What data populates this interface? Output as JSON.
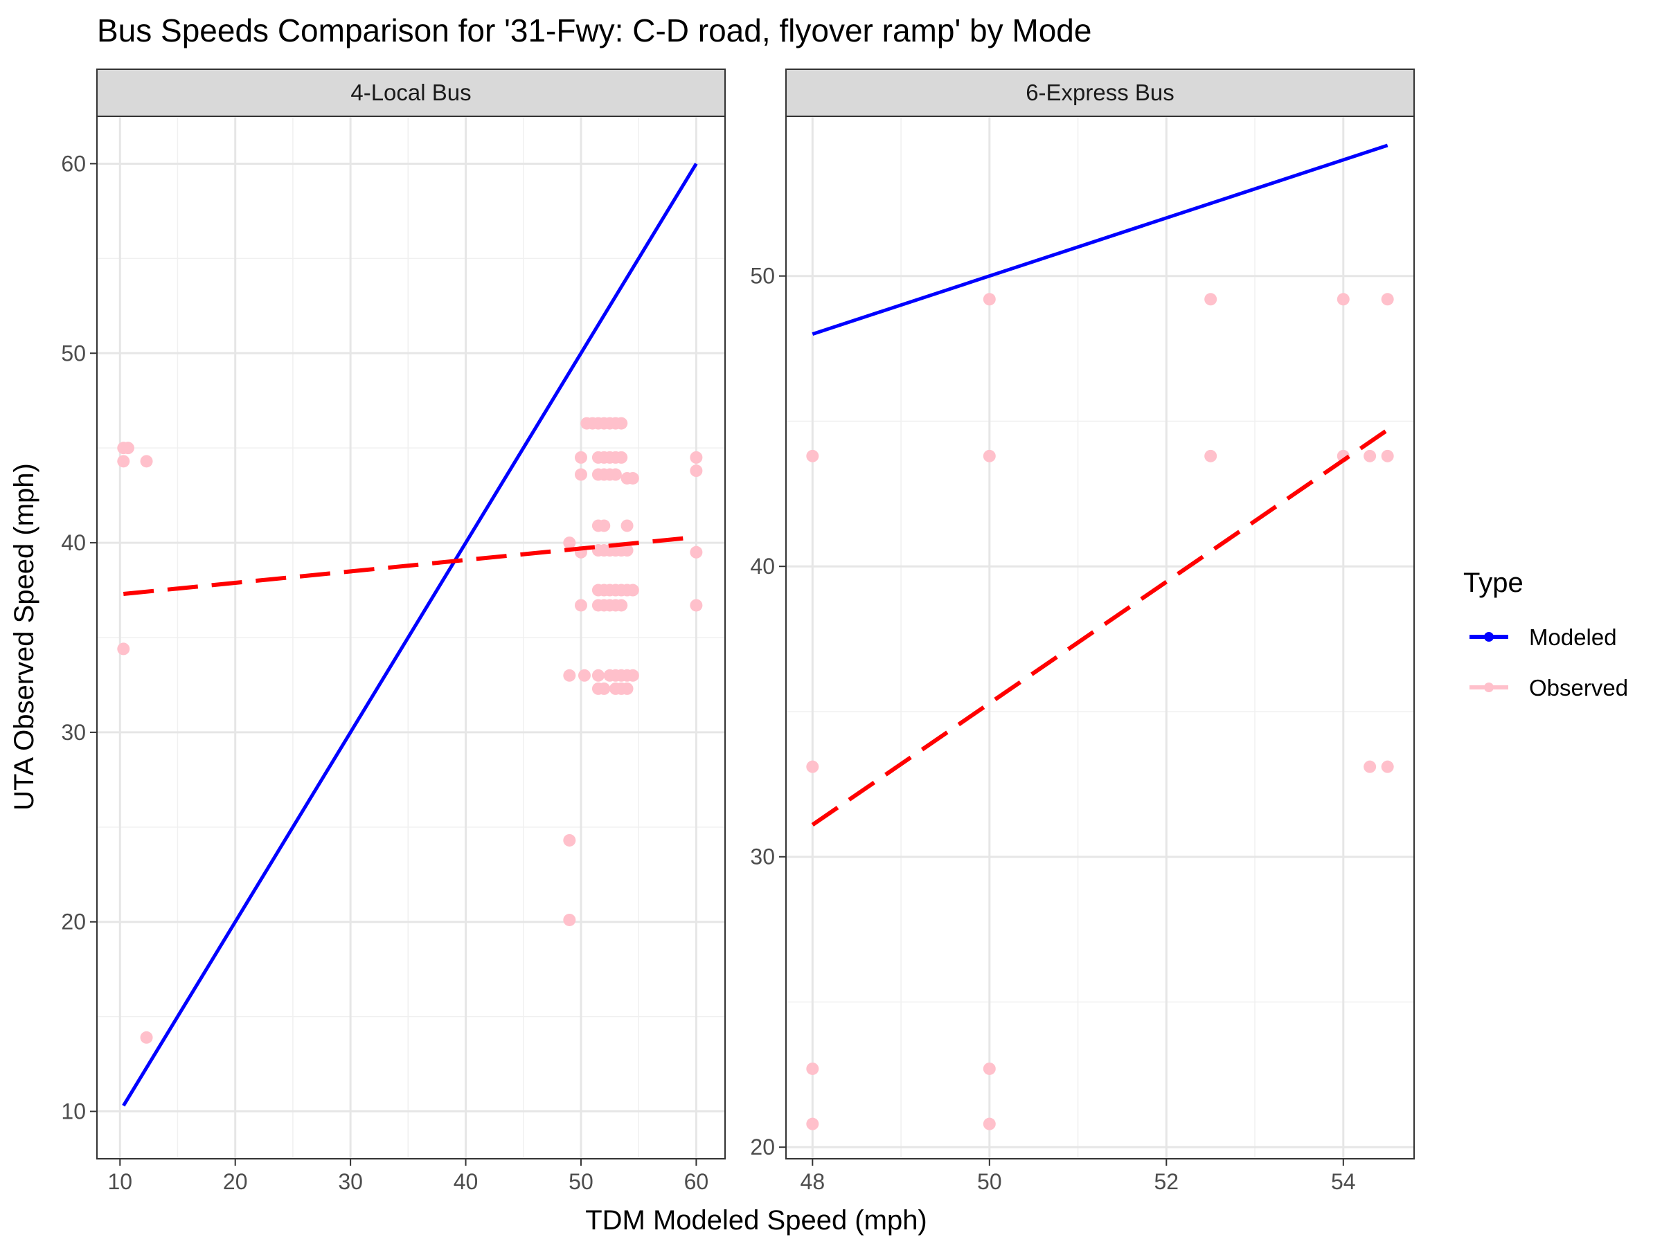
{
  "title": "Bus Speeds Comparison for '31-Fwy: C-D road, flyover ramp' by Mode",
  "xlabel": "TDM Modeled Speed (mph)",
  "ylabel": "UTA Observed Speed (mph)",
  "legend": {
    "title": "Type",
    "position": "right",
    "items": [
      {
        "label": "Modeled",
        "color": "#0000FF"
      },
      {
        "label": "Observed",
        "color": "#FFC0CB"
      }
    ]
  },
  "colors": {
    "modeled": "#0000FF",
    "observed": "#FFC0CB",
    "trend": "#FF0000"
  },
  "chart_data": [
    {
      "type": "scatter",
      "facet": "4-Local Bus",
      "xlim": [
        8,
        62.5
      ],
      "ylim": [
        7.5,
        62.5
      ],
      "x_ticks": [
        10,
        20,
        30,
        40,
        50,
        60
      ],
      "y_ticks": [
        10,
        20,
        30,
        40,
        50,
        60
      ],
      "grid": true,
      "series": [
        {
          "name": "Modeled",
          "style": "solid",
          "points": [
            [
              10.3,
              10.3
            ],
            [
              60,
              60
            ]
          ]
        },
        {
          "name": "Observed",
          "style": "points",
          "points": [
            [
              10.3,
              45
            ],
            [
              10.7,
              45
            ],
            [
              10.3,
              44.3
            ],
            [
              12.3,
              44.3
            ],
            [
              10.3,
              34.4
            ],
            [
              12.3,
              13.9
            ],
            [
              49,
              40
            ],
            [
              49,
              33
            ],
            [
              49,
              24.3
            ],
            [
              49,
              20.1
            ],
            [
              50,
              44.5
            ],
            [
              50,
              43.6
            ],
            [
              50,
              39.5
            ],
            [
              50,
              36.7
            ],
            [
              50.3,
              33
            ],
            [
              50.5,
              46.3
            ],
            [
              51,
              46.3
            ],
            [
              51.5,
              46.3
            ],
            [
              52,
              46.3
            ],
            [
              52.5,
              46.3
            ],
            [
              53,
              46.3
            ],
            [
              53.5,
              46.3
            ],
            [
              51.5,
              44.5
            ],
            [
              52,
              44.5
            ],
            [
              52.5,
              44.5
            ],
            [
              53,
              44.5
            ],
            [
              53.5,
              44.5
            ],
            [
              51.5,
              43.6
            ],
            [
              52,
              43.6
            ],
            [
              52.5,
              43.6
            ],
            [
              53,
              43.6
            ],
            [
              54,
              43.4
            ],
            [
              54.5,
              43.4
            ],
            [
              51.5,
              40.9
            ],
            [
              52,
              40.9
            ],
            [
              54,
              40.9
            ],
            [
              51.5,
              39.6
            ],
            [
              52,
              39.6
            ],
            [
              52.5,
              39.6
            ],
            [
              53,
              39.6
            ],
            [
              53.5,
              39.6
            ],
            [
              54,
              39.6
            ],
            [
              51.5,
              37.5
            ],
            [
              52,
              37.5
            ],
            [
              52.5,
              37.5
            ],
            [
              53,
              37.5
            ],
            [
              53.5,
              37.5
            ],
            [
              54,
              37.5
            ],
            [
              54.5,
              37.5
            ],
            [
              51.5,
              36.7
            ],
            [
              52,
              36.7
            ],
            [
              52.5,
              36.7
            ],
            [
              53,
              36.7
            ],
            [
              53.5,
              36.7
            ],
            [
              51.5,
              33
            ],
            [
              52.5,
              33
            ],
            [
              53,
              33
            ],
            [
              53.5,
              33
            ],
            [
              54,
              33
            ],
            [
              54.5,
              33
            ],
            [
              51.5,
              32.3
            ],
            [
              52,
              32.3
            ],
            [
              53,
              32.3
            ],
            [
              53.5,
              32.3
            ],
            [
              54,
              32.3
            ],
            [
              60,
              44.5
            ],
            [
              60,
              43.8
            ],
            [
              60,
              39.5
            ],
            [
              60,
              36.7
            ]
          ]
        },
        {
          "name": "Observed trend",
          "style": "dashed",
          "points": [
            [
              10.3,
              37.3
            ],
            [
              60,
              40.3
            ]
          ]
        }
      ]
    },
    {
      "type": "scatter",
      "facet": "6-Express Bus",
      "xlim": [
        47.7,
        54.8
      ],
      "ylim": [
        19.6,
        55.5
      ],
      "x_ticks": [
        48,
        50,
        52,
        54
      ],
      "y_ticks": [
        20,
        30,
        40,
        50
      ],
      "grid": true,
      "series": [
        {
          "name": "Modeled",
          "style": "solid",
          "points": [
            [
              48,
              48
            ],
            [
              54.5,
              54.5
            ]
          ]
        },
        {
          "name": "Observed",
          "style": "points",
          "points": [
            [
              48,
              43.8
            ],
            [
              48,
              33.1
            ],
            [
              48,
              22.7
            ],
            [
              48,
              20.8
            ],
            [
              50,
              49.2
            ],
            [
              50,
              43.8
            ],
            [
              50,
              22.7
            ],
            [
              50,
              20.8
            ],
            [
              52.5,
              49.2
            ],
            [
              52.5,
              43.8
            ],
            [
              54,
              49.2
            ],
            [
              54,
              43.8
            ],
            [
              54.3,
              43.8
            ],
            [
              54.3,
              33.1
            ],
            [
              54.5,
              49.2
            ],
            [
              54.5,
              43.8
            ],
            [
              54.5,
              33.1
            ]
          ]
        },
        {
          "name": "Observed trend",
          "style": "dashed",
          "points": [
            [
              48,
              31.1
            ],
            [
              54.5,
              44.7
            ]
          ]
        }
      ]
    }
  ]
}
